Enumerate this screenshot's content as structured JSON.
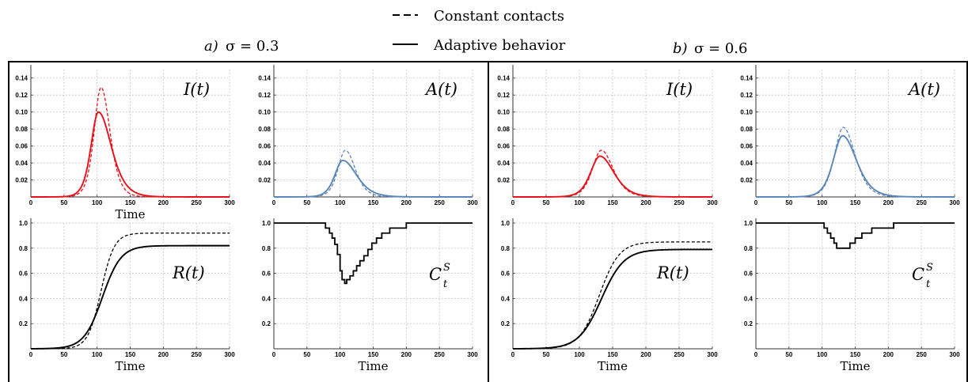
{
  "legend": {
    "dashed_label": "Constant contacts",
    "solid_label": "Adaptive behavior"
  },
  "panels": [
    {
      "letter": "a)",
      "title": "σ = 0.3"
    },
    {
      "letter": "b)",
      "title": "σ = 0.6"
    }
  ],
  "colors": {
    "infected": "#e8111a",
    "asymptomatic": "#5b86b9",
    "recovered": "#000000",
    "contacts": "#000000"
  },
  "chart_data": [
    {
      "panel": "a",
      "type": "line",
      "label": "I(t)",
      "label_style": "plain",
      "xlabel": "Time",
      "xlim": [
        0,
        300
      ],
      "ylim": [
        0,
        0.15
      ],
      "xticks": [
        0,
        50,
        100,
        150,
        200,
        250,
        300
      ],
      "yticks": [
        0.02,
        0.04,
        0.06,
        0.08,
        0.1,
        0.12,
        0.14
      ],
      "ytick_labels": [
        "0.02",
        "0.04",
        "0.06",
        "0.08",
        "0.10",
        "0.12",
        "0.14"
      ],
      "color": "infected",
      "series": [
        {
          "style": "dashed",
          "shape": "peak",
          "peak": 0.129,
          "peak_x": 106,
          "width_left": 14,
          "width_right": 18
        },
        {
          "style": "solid",
          "shape": "peak",
          "peak": 0.1,
          "peak_x": 102,
          "width_left": 15,
          "width_right": 26
        }
      ]
    },
    {
      "panel": "a",
      "type": "line",
      "label": "A(t)",
      "label_style": "plain",
      "xlabel": "",
      "xlim": [
        0,
        300
      ],
      "ylim": [
        0,
        0.15
      ],
      "xticks": [
        0,
        50,
        100,
        150,
        200,
        250,
        300
      ],
      "yticks": [
        0.02,
        0.04,
        0.06,
        0.08,
        0.1,
        0.12,
        0.14
      ],
      "ytick_labels": [
        "0.02",
        "0.04",
        "0.06",
        "0.08",
        "0.10",
        "0.12",
        "0.14"
      ],
      "color": "asymptomatic",
      "series": [
        {
          "style": "dashed",
          "shape": "peak",
          "peak": 0.055,
          "peak_x": 108,
          "width_left": 15,
          "width_right": 20
        },
        {
          "style": "solid",
          "shape": "peak",
          "peak": 0.043,
          "peak_x": 104,
          "width_left": 16,
          "width_right": 28
        }
      ]
    },
    {
      "panel": "a",
      "type": "line",
      "label": "R(t)",
      "label_style": "plain",
      "xlabel": "Time",
      "xlim": [
        0,
        300
      ],
      "ylim": [
        0,
        1.0
      ],
      "xticks": [
        0,
        50,
        100,
        150,
        200,
        250,
        300
      ],
      "yticks": [
        0.2,
        0.4,
        0.6,
        0.8,
        1.0
      ],
      "ytick_labels": [
        "0.2",
        "0.4",
        "0.6",
        "0.8",
        "1.0"
      ],
      "color": "recovered",
      "series": [
        {
          "style": "dashed",
          "shape": "sigmoid",
          "final": 0.92,
          "mid": 106,
          "scale": 10
        },
        {
          "style": "solid",
          "shape": "sigmoid",
          "final": 0.82,
          "mid": 108,
          "scale": 14
        }
      ]
    },
    {
      "panel": "a",
      "type": "line",
      "label": "C",
      "label_sup": "S",
      "label_sub": "t",
      "label_style": "supsub",
      "xlabel": "Time",
      "xlim": [
        0,
        300
      ],
      "ylim": [
        0,
        1.0
      ],
      "xticks": [
        0,
        50,
        100,
        150,
        200,
        250,
        300
      ],
      "yticks": [
        0.2,
        0.4,
        0.6,
        0.8,
        1.0
      ],
      "ytick_labels": [
        "0.2",
        "0.4",
        "0.6",
        "0.8",
        "1.0"
      ],
      "color": "contacts",
      "series": [
        {
          "style": "solid",
          "shape": "step",
          "points": [
            [
              0,
              1.0
            ],
            [
              75,
              1.0
            ],
            [
              78,
              0.96
            ],
            [
              84,
              0.92
            ],
            [
              88,
              0.88
            ],
            [
              92,
              0.83
            ],
            [
              96,
              0.75
            ],
            [
              100,
              0.62
            ],
            [
              103,
              0.55
            ],
            [
              107,
              0.52
            ],
            [
              110,
              0.55
            ],
            [
              115,
              0.58
            ],
            [
              120,
              0.62
            ],
            [
              125,
              0.66
            ],
            [
              130,
              0.7
            ],
            [
              136,
              0.74
            ],
            [
              142,
              0.79
            ],
            [
              148,
              0.84
            ],
            [
              155,
              0.88
            ],
            [
              163,
              0.92
            ],
            [
              175,
              0.96
            ],
            [
              200,
              1.0
            ],
            [
              300,
              1.0
            ]
          ]
        }
      ]
    },
    {
      "panel": "b",
      "type": "line",
      "label": "I(t)",
      "label_style": "plain",
      "xlabel": "",
      "xlim": [
        0,
        300
      ],
      "ylim": [
        0,
        0.15
      ],
      "xticks": [
        0,
        50,
        100,
        150,
        200,
        250,
        300
      ],
      "yticks": [
        0.02,
        0.04,
        0.06,
        0.08,
        0.1,
        0.12,
        0.14
      ],
      "ytick_labels": [
        "0.02",
        "0.04",
        "0.06",
        "0.08",
        "0.10",
        "0.12",
        "0.14"
      ],
      "color": "infected",
      "series": [
        {
          "style": "dashed",
          "shape": "peak",
          "peak": 0.055,
          "peak_x": 133,
          "width_left": 18,
          "width_right": 24
        },
        {
          "style": "solid",
          "shape": "peak",
          "peak": 0.048,
          "peak_x": 131,
          "width_left": 19,
          "width_right": 28
        }
      ]
    },
    {
      "panel": "b",
      "type": "line",
      "label": "A(t)",
      "label_style": "plain",
      "xlabel": "",
      "xlim": [
        0,
        300
      ],
      "ylim": [
        0,
        0.15
      ],
      "xticks": [
        0,
        50,
        100,
        150,
        200,
        250,
        300
      ],
      "yticks": [
        0.02,
        0.04,
        0.06,
        0.08,
        0.1,
        0.12,
        0.14
      ],
      "ytick_labels": [
        "0.02",
        "0.04",
        "0.06",
        "0.08",
        "0.10",
        "0.12",
        "0.14"
      ],
      "color": "asymptomatic",
      "series": [
        {
          "style": "dashed",
          "shape": "peak",
          "peak": 0.082,
          "peak_x": 132,
          "width_left": 18,
          "width_right": 24
        },
        {
          "style": "solid",
          "shape": "peak",
          "peak": 0.072,
          "peak_x": 131,
          "width_left": 19,
          "width_right": 28
        }
      ]
    },
    {
      "panel": "b",
      "type": "line",
      "label": "R(t)",
      "label_style": "plain",
      "xlabel": "Time",
      "xlim": [
        0,
        300
      ],
      "ylim": [
        0,
        1.0
      ],
      "xticks": [
        0,
        50,
        100,
        150,
        200,
        250,
        300
      ],
      "yticks": [
        0.2,
        0.4,
        0.6,
        0.8,
        1.0
      ],
      "ytick_labels": [
        "0.2",
        "0.4",
        "0.6",
        "0.8",
        "1.0"
      ],
      "color": "recovered",
      "series": [
        {
          "style": "dashed",
          "shape": "sigmoid",
          "final": 0.85,
          "mid": 130,
          "scale": 15
        },
        {
          "style": "solid",
          "shape": "sigmoid",
          "final": 0.79,
          "mid": 133,
          "scale": 17
        }
      ]
    },
    {
      "panel": "b",
      "type": "line",
      "label": "C",
      "label_sup": "S",
      "label_sub": "t",
      "label_style": "supsub",
      "xlabel": "Time",
      "xlim": [
        0,
        300
      ],
      "ylim": [
        0,
        1.0
      ],
      "xticks": [
        0,
        50,
        100,
        150,
        200,
        250,
        300
      ],
      "yticks": [
        0.2,
        0.4,
        0.6,
        0.8,
        1.0
      ],
      "ytick_labels": [
        "0.2",
        "0.4",
        "0.6",
        "0.8",
        "1.0"
      ],
      "color": "contacts",
      "series": [
        {
          "style": "solid",
          "shape": "step",
          "points": [
            [
              0,
              1.0
            ],
            [
              100,
              1.0
            ],
            [
              103,
              0.96
            ],
            [
              108,
              0.92
            ],
            [
              113,
              0.88
            ],
            [
              118,
              0.84
            ],
            [
              122,
              0.8
            ],
            [
              138,
              0.8
            ],
            [
              142,
              0.84
            ],
            [
              150,
              0.88
            ],
            [
              160,
              0.92
            ],
            [
              175,
              0.96
            ],
            [
              208,
              1.0
            ],
            [
              300,
              1.0
            ]
          ]
        }
      ]
    }
  ]
}
